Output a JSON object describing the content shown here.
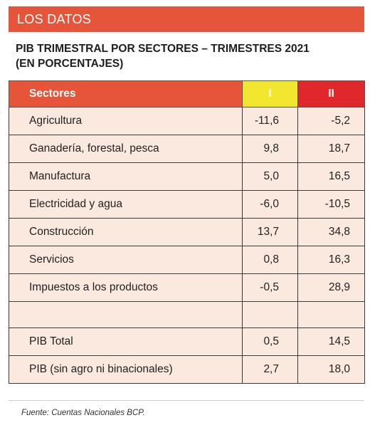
{
  "banner": {
    "label": "LOS DATOS"
  },
  "title": {
    "line1": "PIB TRIMESTRAL POR SECTORES –  TRIMESTRES 2021",
    "line2": "(EN PORCENTAJES)"
  },
  "table": {
    "headers": {
      "sector": "Sectores",
      "q1": "I",
      "q2": "II"
    },
    "colors": {
      "sector_header": "#e6553a",
      "q1_header": "#f2e62e",
      "q2_header": "#e0282c",
      "row_bg": "#fbe8de"
    },
    "rows": [
      {
        "sector": "Agricultura",
        "q1": "-11,6",
        "q2": "-5,2"
      },
      {
        "sector": "Ganadería, forestal, pesca",
        "q1": "9,8",
        "q2": "18,7"
      },
      {
        "sector": "Manufactura",
        "q1": "5,0",
        "q2": "16,5"
      },
      {
        "sector": "Electricidad y agua",
        "q1": "-6,0",
        "q2": "-10,5"
      },
      {
        "sector": "Construcción",
        "q1": "13,7",
        "q2": "34,8"
      },
      {
        "sector": "Servicios",
        "q1": "0,8",
        "q2": "16,3"
      },
      {
        "sector": "Impuestos a los productos",
        "q1": "-0,5",
        "q2": "28,9"
      },
      {
        "sector": "PIB  Total",
        "q1": "0,5",
        "q2": "14,5"
      },
      {
        "sector": "PIB (sin agro ni binacionales)",
        "q1": "2,7",
        "q2": "18,0"
      }
    ]
  },
  "source": "Fuente: Cuentas Nacionales BCP."
}
